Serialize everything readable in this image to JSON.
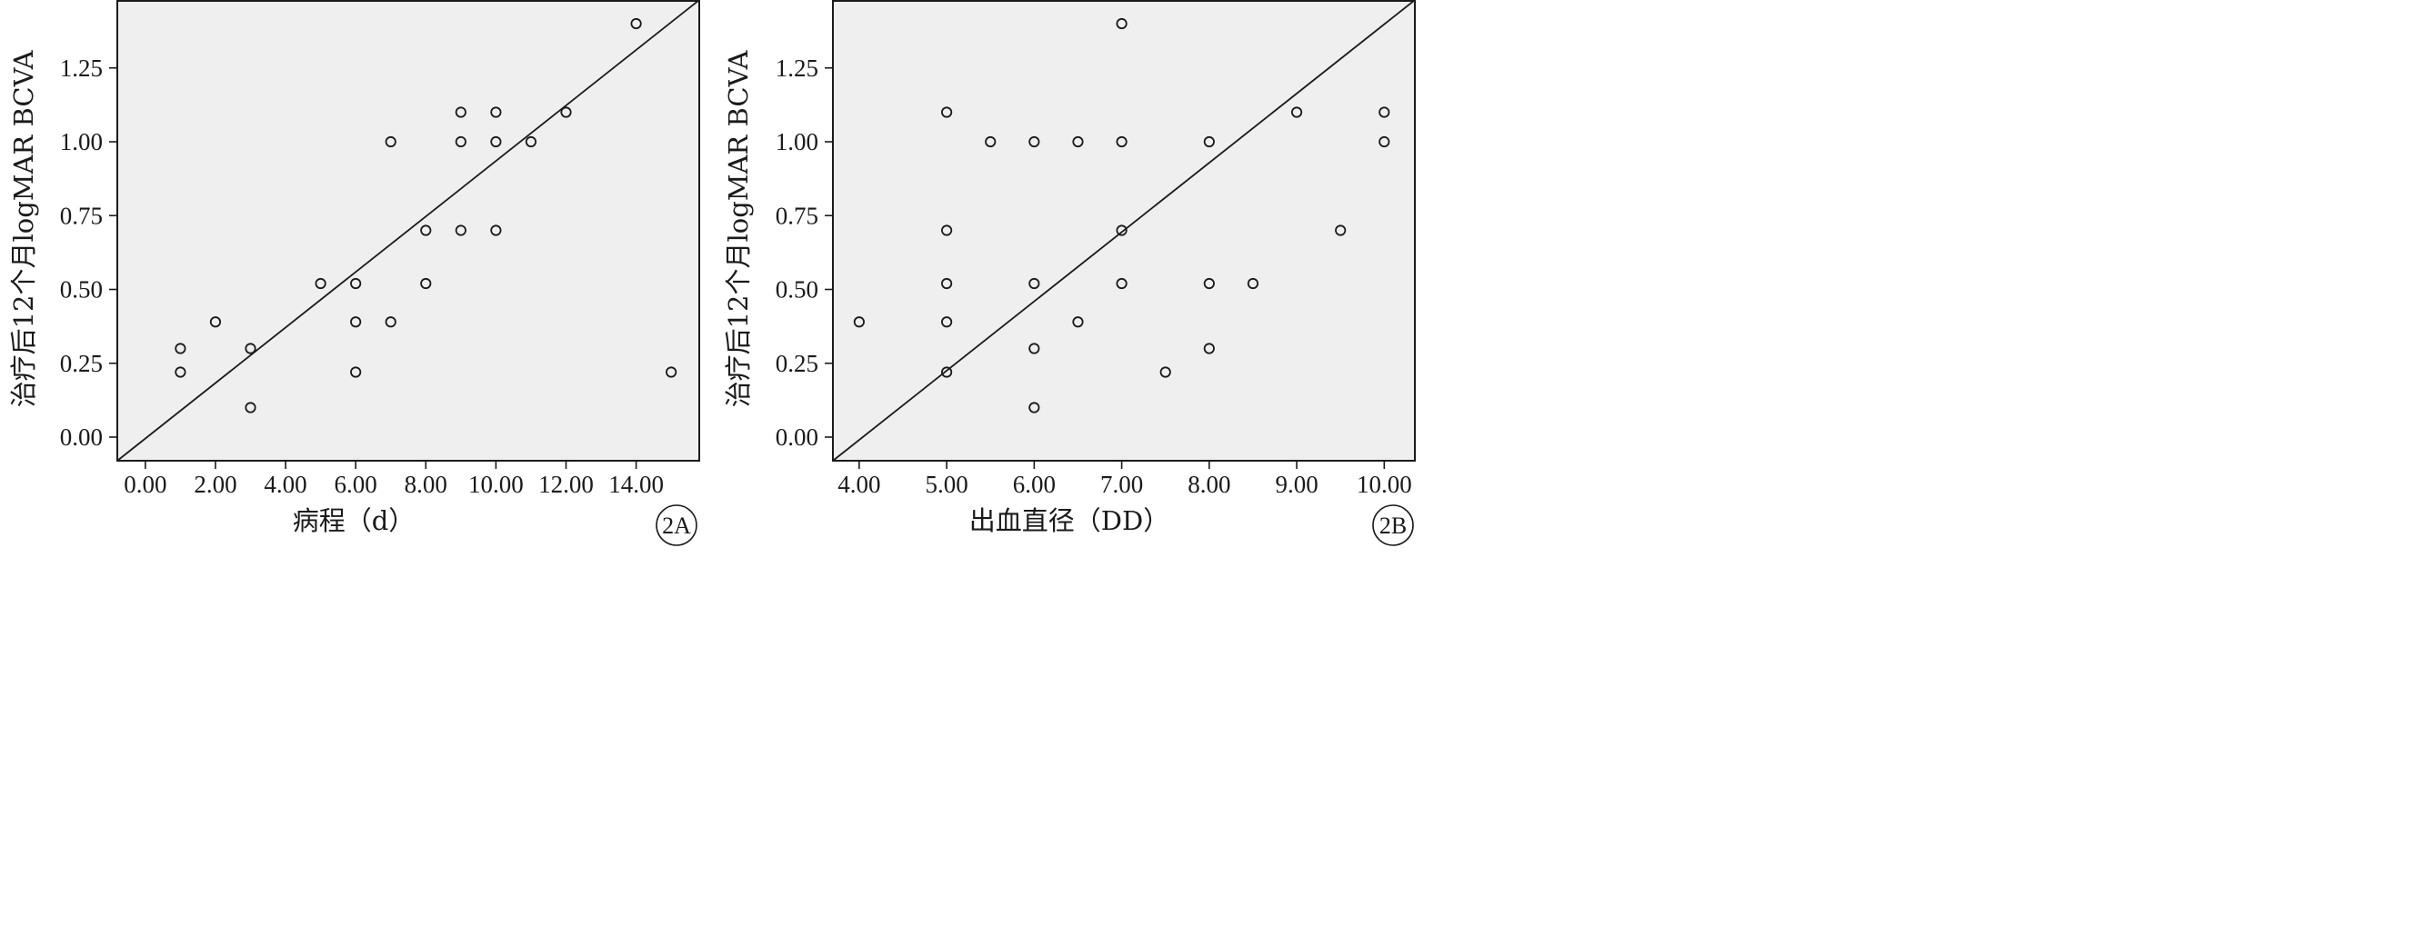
{
  "chart_data": [
    {
      "type": "scatter",
      "panel_label": "2A",
      "xlabel": "病程（d）",
      "ylabel": "治疗后12个月logMAR BCVA",
      "xlim": [
        -0.8,
        15.8
      ],
      "ylim": [
        -0.08,
        1.48
      ],
      "x_ticks": [
        0,
        2,
        4,
        6,
        8,
        10,
        12,
        14
      ],
      "x_tick_labels": [
        "0.00",
        "2.00",
        "4.00",
        "6.00",
        "8.00",
        "10.00",
        "12.00",
        "14.00"
      ],
      "y_ticks": [
        0,
        0.25,
        0.5,
        0.75,
        1.0,
        1.25
      ],
      "y_tick_labels": [
        "0.00",
        "0.25",
        "0.50",
        "0.75",
        "1.00",
        "1.25"
      ],
      "fit_line": [
        [
          -0.8,
          -0.08
        ],
        [
          15.8,
          1.48
        ]
      ],
      "points": [
        [
          1,
          0.3
        ],
        [
          1,
          0.22
        ],
        [
          2,
          0.39
        ],
        [
          3,
          0.3
        ],
        [
          3,
          0.1
        ],
        [
          5,
          0.52
        ],
        [
          6,
          0.52
        ],
        [
          6,
          0.39
        ],
        [
          6,
          0.22
        ],
        [
          7,
          1.0
        ],
        [
          7,
          0.39
        ],
        [
          8,
          0.7
        ],
        [
          8,
          0.52
        ],
        [
          9,
          1.1
        ],
        [
          9,
          1.0
        ],
        [
          9,
          0.7
        ],
        [
          10,
          1.1
        ],
        [
          10,
          1.0
        ],
        [
          10,
          0.7
        ],
        [
          11,
          1.0
        ],
        [
          12,
          1.1
        ],
        [
          14,
          1.4
        ],
        [
          15,
          0.22
        ]
      ]
    },
    {
      "type": "scatter",
      "panel_label": "2B",
      "xlabel": "出血直径（DD）",
      "ylabel": "治疗后12个月logMAR BCVA",
      "xlim": [
        3.7,
        10.35
      ],
      "ylim": [
        -0.08,
        1.48
      ],
      "x_ticks": [
        4,
        5,
        6,
        7,
        8,
        9,
        10
      ],
      "x_tick_labels": [
        "4.00",
        "5.00",
        "6.00",
        "7.00",
        "8.00",
        "9.00",
        "10.00"
      ],
      "y_ticks": [
        0,
        0.25,
        0.5,
        0.75,
        1.0,
        1.25
      ],
      "y_tick_labels": [
        "0.00",
        "0.25",
        "0.50",
        "0.75",
        "1.00",
        "1.25"
      ],
      "fit_line": [
        [
          3.7,
          -0.08
        ],
        [
          10.35,
          1.48
        ]
      ],
      "points": [
        [
          4,
          0.39
        ],
        [
          5,
          1.1
        ],
        [
          5,
          0.7
        ],
        [
          5,
          0.52
        ],
        [
          5,
          0.39
        ],
        [
          5,
          0.22
        ],
        [
          5.5,
          1.0
        ],
        [
          6,
          1.0
        ],
        [
          6,
          0.52
        ],
        [
          6,
          0.3
        ],
        [
          6,
          0.1
        ],
        [
          6.5,
          1.0
        ],
        [
          6.5,
          0.39
        ],
        [
          7,
          1.4
        ],
        [
          7,
          1.0
        ],
        [
          7,
          0.7
        ],
        [
          7,
          0.52
        ],
        [
          7.5,
          0.22
        ],
        [
          8,
          1.0
        ],
        [
          8,
          0.52
        ],
        [
          8,
          0.3
        ],
        [
          8.5,
          0.52
        ],
        [
          9,
          1.1
        ],
        [
          9.5,
          0.7
        ],
        [
          10,
          1.1
        ],
        [
          10,
          1.0
        ]
      ]
    }
  ]
}
